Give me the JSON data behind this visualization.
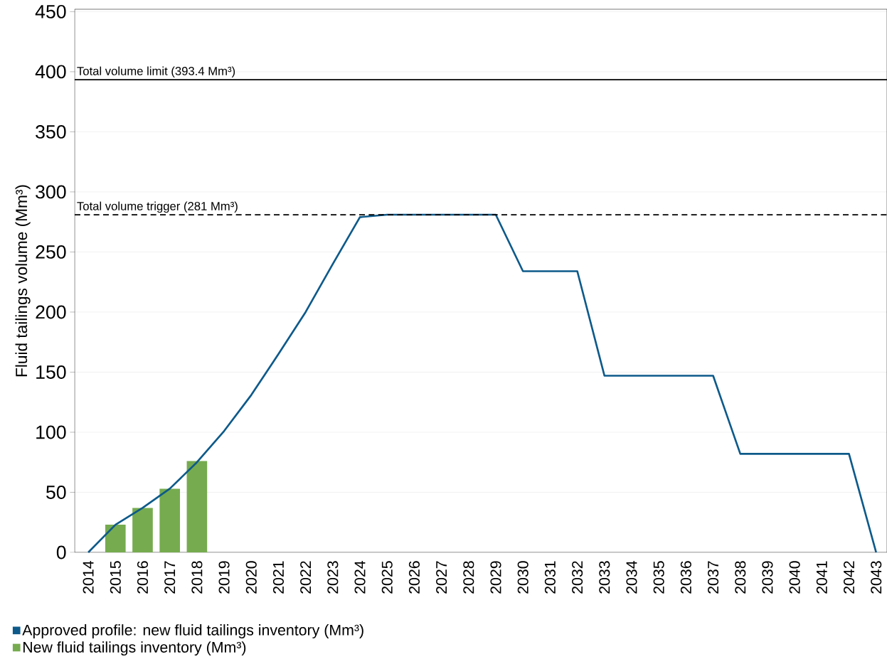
{
  "chart_data": {
    "type": "bar",
    "ylabel": "Fluid tailings volume (Mm³)",
    "categories": [
      "2014",
      "2015",
      "2016",
      "2017",
      "2018",
      "2019",
      "2020",
      "2021",
      "2022",
      "2023",
      "2024",
      "2025",
      "2026",
      "2027",
      "2028",
      "2029",
      "2030",
      "2031",
      "2032",
      "2033",
      "2034",
      "2035",
      "2036",
      "2037",
      "2038",
      "2039",
      "2040",
      "2041",
      "2042",
      "2043"
    ],
    "series": [
      {
        "name": "Approved profile: new fluid tailings inventory (Mm³)",
        "type": "line",
        "color": "#0e5a8a",
        "values": [
          0,
          23,
          37,
          53,
          75,
          101,
          131,
          165,
          200,
          240,
          279,
          281,
          281,
          281,
          281,
          281,
          234,
          234,
          234,
          147,
          147,
          147,
          147,
          147,
          82,
          82,
          82,
          82,
          82,
          0
        ]
      },
      {
        "name": "New fluid tailings inventory (Mm³)",
        "color": "#76ab4f",
        "values": [
          null,
          23,
          37,
          53,
          76,
          null,
          null,
          null,
          null,
          null,
          null,
          null,
          null,
          null,
          null,
          null,
          null,
          null,
          null,
          null,
          null,
          null,
          null,
          null,
          null,
          null,
          null,
          null,
          null,
          null
        ]
      }
    ],
    "ylim": [
      0,
      452
    ],
    "yticks": [
      0,
      50,
      100,
      150,
      200,
      250,
      300,
      350,
      400,
      450
    ],
    "ref_lines": [
      {
        "axis": "y",
        "value": 393.4,
        "label": "Total volume limit (393.4 Mm³)",
        "color": "#000000",
        "line_style": "solid"
      },
      {
        "axis": "y",
        "value": 281,
        "label": "Total volume trigger (281 Mm³)",
        "color": "#000000",
        "line_style": "dashed"
      }
    ],
    "grid": "y",
    "legend": "bottom",
    "marker": "none",
    "line_style": "solid"
  }
}
